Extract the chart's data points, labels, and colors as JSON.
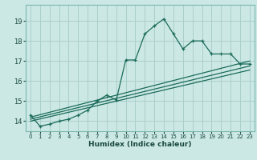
{
  "title": "",
  "xlabel": "Humidex (Indice chaleur)",
  "ylabel": "",
  "bg_color": "#cce8e4",
  "grid_color": "#aacfcb",
  "line_color": "#1a6b5a",
  "xlim": [
    -0.5,
    23.5
  ],
  "ylim": [
    13.5,
    19.8
  ],
  "xticks": [
    0,
    1,
    2,
    3,
    4,
    5,
    6,
    7,
    8,
    9,
    10,
    11,
    12,
    13,
    14,
    15,
    16,
    17,
    18,
    19,
    20,
    21,
    22,
    23
  ],
  "yticks": [
    14,
    15,
    16,
    17,
    18,
    19
  ],
  "main_x": [
    0,
    1,
    2,
    3,
    4,
    5,
    6,
    7,
    8,
    9,
    10,
    11,
    12,
    13,
    14,
    15,
    16,
    17,
    18,
    19,
    20,
    21,
    22,
    23
  ],
  "main_y": [
    14.3,
    13.75,
    13.85,
    14.0,
    14.1,
    14.3,
    14.55,
    15.0,
    15.3,
    15.05,
    17.05,
    17.05,
    18.35,
    18.75,
    19.1,
    18.35,
    17.6,
    18.0,
    18.0,
    17.35,
    17.35,
    17.35,
    16.85,
    16.85
  ],
  "line2_x": [
    0,
    23
  ],
  "line2_y": [
    14.2,
    17.0
  ],
  "line3_x": [
    0,
    23
  ],
  "line3_y": [
    14.1,
    16.75
  ],
  "line4_x": [
    0,
    23
  ],
  "line4_y": [
    14.0,
    16.55
  ]
}
